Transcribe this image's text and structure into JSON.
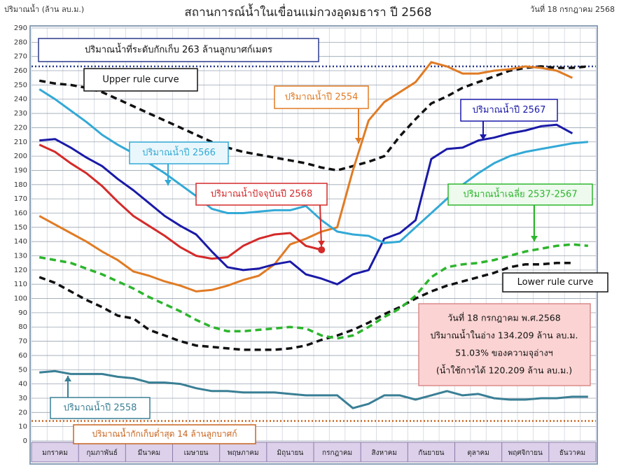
{
  "chart_data": {
    "type": "line",
    "title": "สถานการณ์น้ำในเขื่อนแม่กวงอุดมธารา ปี  2568",
    "y_label": "ปริมาณน้ำ (ล้าน ลบ.ม.)",
    "date": "วันที่ 18 กรกฎาคม 2568",
    "categories": [
      null,
      "มกราคม",
      null,
      null,
      "กุมภาพันธ์",
      null,
      null,
      "มีนาคม",
      null,
      null,
      "เมษายน",
      null,
      null,
      "พฤษภาคม",
      null,
      null,
      "มิถุนายน",
      null,
      null,
      "กรกฎาคม",
      null,
      null,
      "สิงหาคม",
      null,
      null,
      "กันยายน",
      null,
      null,
      "ตุลาคม",
      null,
      null,
      "พฤศจิกายน",
      null,
      null,
      "ธันวาคม",
      null
    ],
    "ylim": [
      0,
      290
    ],
    "yticks": [
      0,
      10,
      20,
      30,
      40,
      50,
      60,
      70,
      80,
      90,
      100,
      110,
      120,
      130,
      140,
      150,
      160,
      170,
      180,
      190,
      200,
      210,
      220,
      230,
      240,
      250,
      260,
      270,
      280,
      290
    ],
    "grid": true,
    "reference_lines": [
      {
        "label": "ปริมาณน้ำที่ระดับกักเก็บ 263 ล้านลูกบาศก์เมตร",
        "value": 263,
        "color": "#2b3a8c"
      },
      {
        "label": "ปริมาณน้ำกักเก็บต่ำสุด 14 ล้านลูกบาศก์",
        "value": 14,
        "color": "#c8641e"
      }
    ],
    "series": [
      {
        "name": "Upper rule curve",
        "color": "#111111",
        "dash": "dashed",
        "values": [
          253,
          251,
          250,
          248,
          245,
          240,
          235,
          230,
          225,
          220,
          215,
          210,
          206,
          203,
          201,
          199,
          197,
          195,
          192,
          190,
          193,
          196,
          200,
          214,
          226,
          237,
          242,
          248,
          252,
          256,
          260,
          262,
          263,
          262,
          262,
          263
        ]
      },
      {
        "name": "Lower rule curve",
        "color": "#111111",
        "dash": "dashed",
        "values": [
          115,
          111,
          105,
          99,
          94,
          88,
          86,
          78,
          74,
          70,
          67,
          66,
          65,
          64,
          64,
          64,
          65,
          67,
          71,
          74,
          78,
          83,
          89,
          94,
          100,
          105,
          109,
          112,
          115,
          118,
          122,
          124,
          124,
          125,
          125,
          null
        ]
      },
      {
        "name": "ปริมาณน้ำปี 2554",
        "color": "#e07b24",
        "dash": "solid",
        "values": [
          158,
          152,
          146,
          140,
          133,
          127,
          119,
          116,
          112,
          109,
          105,
          106,
          109,
          113,
          116,
          124,
          138,
          142,
          147,
          150,
          190,
          225,
          238,
          245,
          252,
          266,
          263,
          258,
          258,
          260,
          261,
          263,
          262,
          260,
          255,
          null
        ]
      },
      {
        "name": "ปริมาณน้ำปัจจุบันปี 2568",
        "color": "#d42a2a",
        "dash": "solid",
        "end_marker": true,
        "values": [
          208,
          203,
          195,
          188,
          179,
          168,
          158,
          151,
          144,
          136,
          130,
          128,
          129,
          137,
          142,
          145,
          146,
          137,
          134.209,
          null,
          null,
          null,
          null,
          null,
          null,
          null,
          null,
          null,
          null,
          null,
          null,
          null,
          null,
          null,
          null,
          null
        ]
      },
      {
        "name": "ปริมาณน้ำปี 2567",
        "color": "#1a1aa8",
        "dash": "solid",
        "values": [
          211,
          212,
          206,
          199,
          193,
          184,
          176,
          167,
          158,
          151,
          145,
          133,
          122,
          120,
          121,
          124,
          126,
          117,
          114,
          110,
          117,
          120,
          142,
          146,
          155,
          198,
          205,
          206,
          211,
          213,
          216,
          218,
          221,
          222,
          216,
          null
        ]
      },
      {
        "name": "ปริมาณน้ำปี 2566",
        "color": "#33a9d6",
        "dash": "solid",
        "values": [
          247,
          240,
          232,
          224,
          215,
          208,
          202,
          195,
          188,
          180,
          172,
          163,
          160,
          160,
          161,
          162,
          162,
          165,
          155,
          147,
          145,
          144,
          139,
          140,
          150,
          160,
          170,
          180,
          188,
          195,
          200,
          203,
          205,
          207,
          209,
          210
        ]
      },
      {
        "name": "ปริมาณน้ำเฉลี่ย 2537-2567",
        "color": "#2db52d",
        "dash": "dashed",
        "values": [
          129,
          127,
          125,
          121,
          117,
          112,
          107,
          101,
          96,
          91,
          85,
          80,
          77,
          77,
          78,
          79,
          80,
          79,
          74,
          72,
          74,
          80,
          87,
          93,
          102,
          115,
          122,
          124,
          125,
          127,
          130,
          133,
          135,
          137,
          138,
          137
        ]
      },
      {
        "name": "ปริมาณน้ำปี 2558",
        "color": "#3a7f95",
        "dash": "solid",
        "values": [
          48,
          49,
          47,
          47,
          47,
          45,
          44,
          41,
          41,
          40,
          37,
          35,
          35,
          34,
          34,
          34,
          33,
          32,
          32,
          32,
          23,
          26,
          32,
          32,
          29,
          32,
          35,
          32,
          33,
          30,
          29,
          29,
          30,
          30,
          31,
          31
        ]
      }
    ],
    "info_box": [
      "วันที่ 18 กรกฎาคม พ.ศ.2568",
      "ปริมาณน้ำในอ่าง 134.209 ล้าน ลบ.ม.",
      "51.03% ของความจุอ่างฯ",
      "(น้ำใช้การได้ 120.209 ล้าน ลบ.ม.)"
    ]
  }
}
